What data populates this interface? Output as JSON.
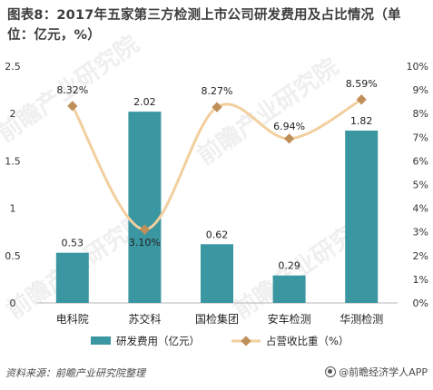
{
  "title": "图表8：2017年五家第三方检测上市公司研发费用及占比情况（单位：亿元，%）",
  "source": "资料来源：前瞻产业研究院整理",
  "logo_text": "@前瞻经济学人APP",
  "watermark": "前瞻产业研究院",
  "colors": {
    "bar": "#3a96a0",
    "line": "#f2cf9e",
    "marker": "#bf8f5a",
    "axis_text": "#333333",
    "watermark": "#e2e2e2"
  },
  "chart_data": {
    "type": "bar",
    "categories": [
      "电科院",
      "苏交科",
      "国检集团",
      "安车检测",
      "华测检测"
    ],
    "series": [
      {
        "name": "研发费用（亿元）",
        "type": "bar",
        "axis": "left",
        "values": [
          0.53,
          2.02,
          0.62,
          0.29,
          1.82
        ],
        "labels": [
          "0.53",
          "2.02",
          "0.62",
          "0.29",
          "1.82"
        ]
      },
      {
        "name": "占营收比重（%）",
        "type": "line",
        "axis": "right",
        "values": [
          8.32,
          3.1,
          8.27,
          6.94,
          8.59
        ],
        "labels": [
          "8.32%",
          "3.10%",
          "8.27%",
          "6.94%",
          "8.59%"
        ]
      }
    ],
    "left_axis": {
      "range": [
        0,
        2.5
      ],
      "ticks": [
        "0",
        "0.5",
        "1",
        "1.5",
        "2",
        "2.5"
      ]
    },
    "right_axis": {
      "range": [
        0,
        10
      ],
      "ticks": [
        "0%",
        "1%",
        "2%",
        "3%",
        "4%",
        "5%",
        "6%",
        "7%",
        "8%",
        "9%",
        "10%"
      ]
    },
    "grid": false,
    "legend_position": "bottom"
  }
}
